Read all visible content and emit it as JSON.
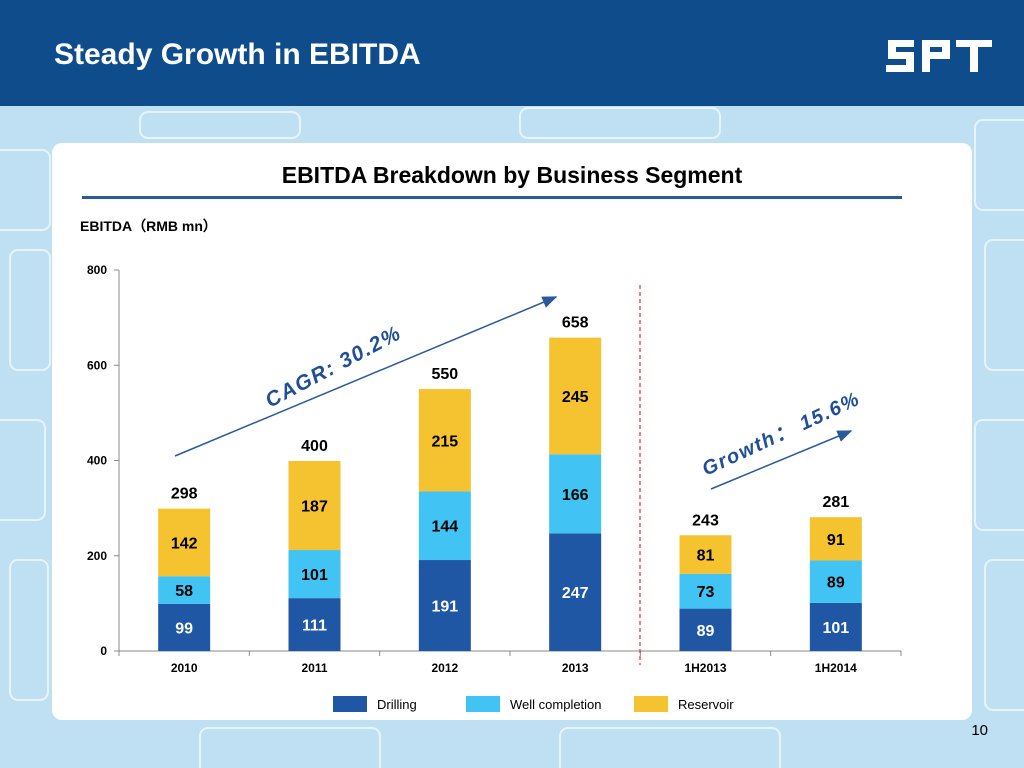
{
  "header": {
    "title": "Steady Growth in EBITDA",
    "logo_text": "SPT"
  },
  "page_number": "10",
  "colors": {
    "header": "#0f4c8c",
    "drilling": "#1f57a4",
    "well_completion": "#41c3f4",
    "reservoir": "#f5c230",
    "arrow": "#2a5a9a",
    "divider": "#e03030"
  },
  "chart_data": {
    "type": "bar",
    "stacked": true,
    "title": "EBITDA Breakdown by Business Segment",
    "ylabel": "EBITDA（RMB mn）",
    "xlabel": "",
    "ylim": [
      0,
      800
    ],
    "yticks": [
      0,
      200,
      400,
      600,
      800
    ],
    "categories": [
      "2010",
      "2011",
      "2012",
      "2013",
      "1H2013",
      "1H2014"
    ],
    "series": [
      {
        "name": "Drilling",
        "values": [
          99,
          111,
          191,
          247,
          89,
          101
        ]
      },
      {
        "name": "Well completion",
        "values": [
          58,
          101,
          144,
          166,
          73,
          89
        ]
      },
      {
        "name": "Reservoir",
        "values": [
          142,
          187,
          215,
          245,
          81,
          91
        ]
      }
    ],
    "totals": [
      298,
      400,
      550,
      658,
      243,
      281
    ],
    "annotations": [
      {
        "text": "CAGR: 30.2%"
      },
      {
        "text": "Growth： 15.6%"
      }
    ],
    "legend_position": "bottom"
  }
}
